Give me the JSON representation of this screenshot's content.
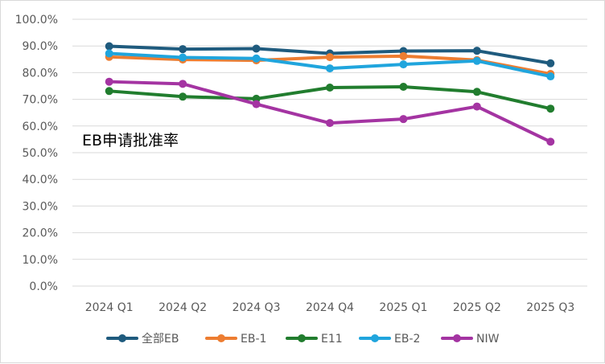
{
  "chart_data": {
    "type": "line",
    "title": "EB申请批准率",
    "xlabel": "",
    "ylabel": "",
    "ylim": [
      0,
      100
    ],
    "yticks": [
      0,
      10,
      20,
      30,
      40,
      50,
      60,
      70,
      80,
      90,
      100
    ],
    "ytick_labels": [
      "0.0%",
      "10.0%",
      "20.0%",
      "30.0%",
      "40.0%",
      "50.0%",
      "60.0%",
      "70.0%",
      "80.0%",
      "90.0%",
      "100.0%"
    ],
    "categories": [
      "2024 Q1",
      "2024 Q2",
      "2024 Q3",
      "2024 Q4",
      "2025 Q1",
      "2025 Q2",
      "2025 Q3"
    ],
    "grid": "horizontal",
    "legend_position": "bottom",
    "series": [
      {
        "name": "全部EB",
        "color": "#1f5b7e",
        "values": [
          89.9,
          88.8,
          89.0,
          87.2,
          88.1,
          88.2,
          83.5
        ]
      },
      {
        "name": "EB-1",
        "color": "#ed7d31",
        "values": [
          85.9,
          84.9,
          84.6,
          85.8,
          86.2,
          84.7,
          79.5
        ]
      },
      {
        "name": "E11",
        "color": "#217d2e",
        "values": [
          73.1,
          71.0,
          70.2,
          74.4,
          74.7,
          72.8,
          66.5
        ]
      },
      {
        "name": "EB-2",
        "color": "#20a5dd",
        "values": [
          87.2,
          85.7,
          85.3,
          81.6,
          83.1,
          84.4,
          78.6
        ]
      },
      {
        "name": "NIW",
        "color": "#a434a2",
        "values": [
          76.6,
          75.8,
          68.2,
          61.1,
          62.6,
          67.3,
          54.1
        ]
      }
    ]
  }
}
